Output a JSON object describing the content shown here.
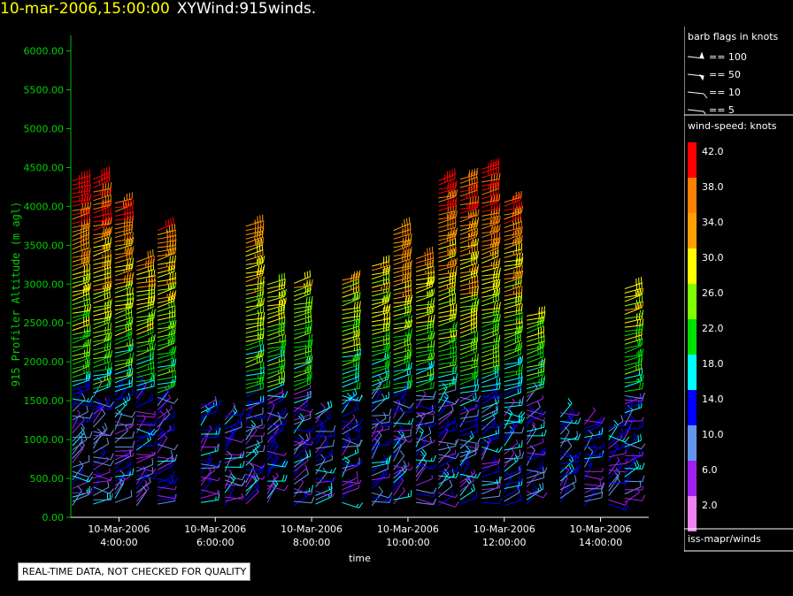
{
  "title": {
    "date": "10-mar-2006,15:00:00",
    "name": "XYWind:915winds."
  },
  "badge": "REAL-TIME DATA, NOT CHECKED FOR QUALITY",
  "legend": {
    "barb_title": "barb flags in knots",
    "barbs": [
      "== 100",
      "== 50",
      "== 10",
      "== 5"
    ],
    "speed_title": "wind-speed: knots",
    "source": "iss-mapr/winds",
    "scale": [
      {
        "label": "42.0",
        "color": "#ff0000"
      },
      {
        "label": "38.0",
        "color": "#ff8000"
      },
      {
        "label": "34.0",
        "color": "#ffa000"
      },
      {
        "label": "30.0",
        "color": "#ffff00"
      },
      {
        "label": "26.0",
        "color": "#80ff00"
      },
      {
        "label": "22.0",
        "color": "#00e000"
      },
      {
        "label": "18.0",
        "color": "#00ffff"
      },
      {
        "label": "14.0",
        "color": "#0000ff"
      },
      {
        "label": "10.0",
        "color": "#6495ed"
      },
      {
        "label": "6.0",
        "color": "#a020f0"
      },
      {
        "label": "2.0",
        "color": "#ee82ee"
      }
    ]
  },
  "chart_data": {
    "type": "scatter",
    "xlabel": "time",
    "ylabel": "915 Profiler Altitude (m agl)",
    "ylim": [
      0,
      6200
    ],
    "yticks": [
      "0.00",
      "500.00",
      "1000.00",
      "1500.00",
      "2000.00",
      "2500.00",
      "3000.00",
      "3500.00",
      "4000.00",
      "4500.00",
      "5000.00",
      "5500.00",
      "6000.00"
    ],
    "xlim": [
      "2006-03-10 03:00",
      "2006-03-10 15:00"
    ],
    "xticks": [
      {
        "date": "10-Mar-2006",
        "time": "4:00:00"
      },
      {
        "date": "10-Mar-2006",
        "time": "6:00:00"
      },
      {
        "date": "10-Mar-2006",
        "time": "8:00:00"
      },
      {
        "date": "10-Mar-2006",
        "time": "10:00:00"
      },
      {
        "date": "10-Mar-2006",
        "time": "12:00:00"
      },
      {
        "date": "10-Mar-2006",
        "time": "14:00:00"
      }
    ],
    "profiles": [
      {
        "time": "03:02",
        "top": 4350
      },
      {
        "time": "03:28",
        "top": 4400
      },
      {
        "time": "03:55",
        "top": 4050
      },
      {
        "time": "04:22",
        "top": 3300
      },
      {
        "time": "04:48",
        "top": 3700
      },
      {
        "time": "05:42",
        "top": 1500
      },
      {
        "time": "06:12",
        "top": 1350
      },
      {
        "time": "06:38",
        "top": 3750
      },
      {
        "time": "07:05",
        "top": 3000
      },
      {
        "time": "07:38",
        "top": 3050
      },
      {
        "time": "08:05",
        "top": 1350
      },
      {
        "time": "08:38",
        "top": 3100
      },
      {
        "time": "09:15",
        "top": 3250
      },
      {
        "time": "09:42",
        "top": 3700
      },
      {
        "time": "10:10",
        "top": 3350
      },
      {
        "time": "10:38",
        "top": 4350
      },
      {
        "time": "11:05",
        "top": 4400
      },
      {
        "time": "11:32",
        "top": 4500
      },
      {
        "time": "12:00",
        "top": 4100
      },
      {
        "time": "12:28",
        "top": 2600
      },
      {
        "time": "13:10",
        "top": 1350
      },
      {
        "time": "13:40",
        "top": 1300
      },
      {
        "time": "14:10",
        "top": 1200
      },
      {
        "time": "14:30",
        "top": 2950
      }
    ]
  }
}
